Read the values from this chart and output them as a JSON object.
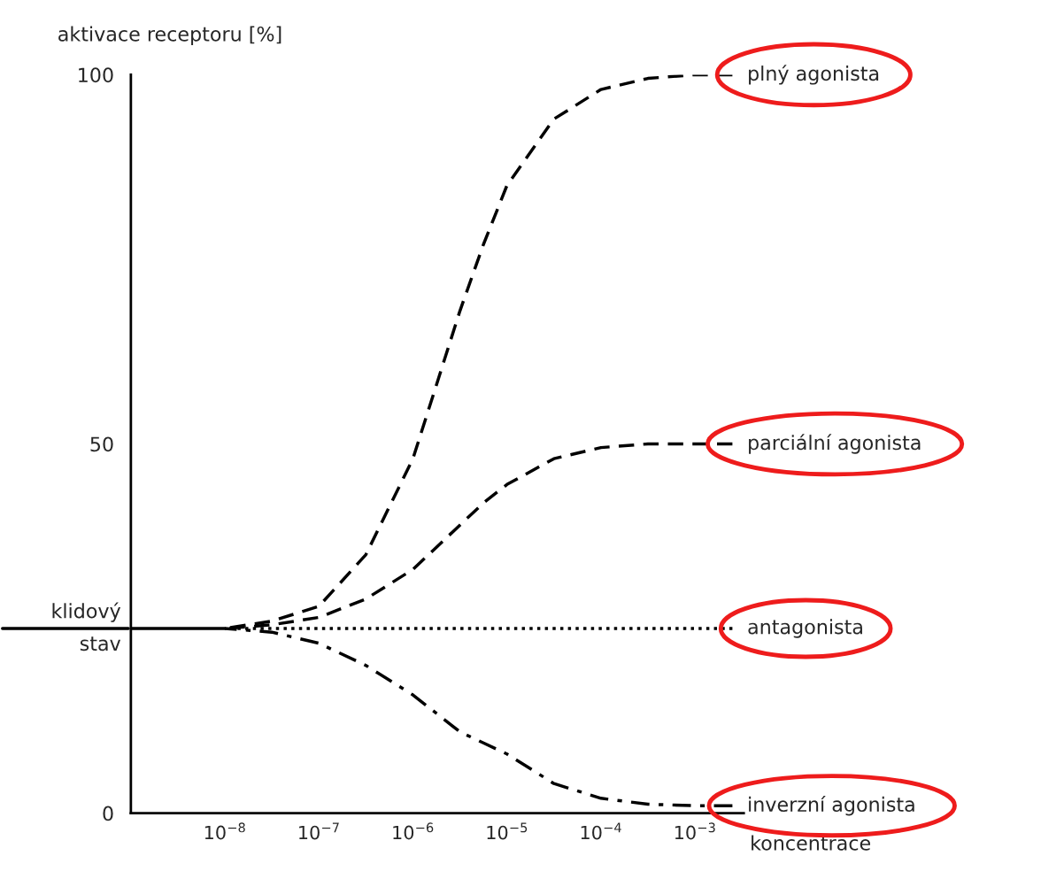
{
  "chart_data": {
    "type": "line",
    "ylabel": "aktivace receptoru [%]",
    "xlabel": "koncentrace",
    "log": "x",
    "legend": false,
    "grid": false,
    "marker": "none",
    "x": [
      1e-08,
      3.16e-08,
      1e-07,
      3.16e-07,
      1e-06,
      1.78e-06,
      3.16e-06,
      5.62e-06,
      1e-05,
      3.16e-05,
      0.0001,
      0.000316,
      0.001,
      0.0025
    ],
    "series": [
      {
        "name": "plný agonista",
        "color": "#000000",
        "line_style": "dashed",
        "values": [
          25,
          26,
          28,
          35,
          48,
          58,
          68,
          77,
          85,
          94,
          98,
          99.5,
          100,
          100
        ]
      },
      {
        "name": "parciální agonista",
        "color": "#000000",
        "line_style": "dashed",
        "values": [
          25,
          25.5,
          26.5,
          29,
          33,
          36,
          39,
          42,
          44.5,
          48,
          49.5,
          50,
          50,
          50
        ]
      },
      {
        "name": "antagonista",
        "color": "#000000",
        "line_style": "dotted",
        "values": [
          25,
          25,
          25,
          25,
          25,
          25,
          25,
          25,
          25,
          25,
          25,
          25,
          25,
          25
        ]
      },
      {
        "name": "inverzní agonista",
        "color": "#000000",
        "line_style": "dashdot",
        "values": [
          25,
          24.5,
          23,
          20,
          16,
          13.5,
          11,
          9.5,
          8,
          4,
          2,
          1.2,
          1,
          1
        ]
      }
    ],
    "ref_lines": [
      {
        "axis": "y",
        "value": 25,
        "label": "klidový stav",
        "color": "#000000",
        "line_style": "solid"
      }
    ],
    "xlim": [
      1e-09,
      0.0033
    ],
    "ylim": [
      0,
      100
    ],
    "xticks": [
      {
        "value": 1e-08,
        "label": "10$^{−8}$"
      },
      {
        "value": 1e-07,
        "label": "10$^{−7}$"
      },
      {
        "value": 1e-06,
        "label": "10$^{−6}$"
      },
      {
        "value": 1e-05,
        "label": "10$^{−5}$"
      },
      {
        "value": 0.0001,
        "label": "10$^{−4}$"
      },
      {
        "value": 0.001,
        "label": "10$^{−3}$"
      }
    ],
    "yticks": [
      0,
      50,
      100
    ]
  }
}
